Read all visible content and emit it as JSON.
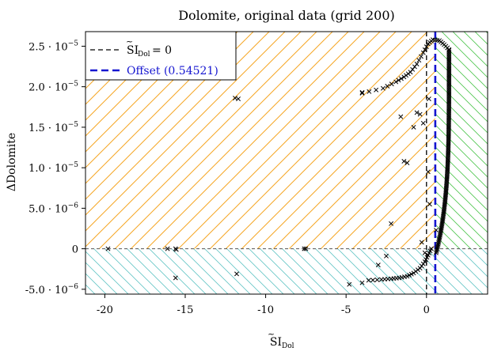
{
  "chart_data": {
    "type": "scatter",
    "title": "Dolomite, original data (grid 200)",
    "xlabel": "SI",
    "xlabel_sub": "Dol",
    "ylabel": "ΔDolomite",
    "xlim": [
      -21.2,
      3.8
    ],
    "ylim": [
      -5.6e-06,
      2.68e-05
    ],
    "x_ticks": [
      {
        "value": -20,
        "label": "-20"
      },
      {
        "value": -15,
        "label": "-15"
      },
      {
        "value": -10,
        "label": "-10"
      },
      {
        "value": -5,
        "label": "-5"
      },
      {
        "value": 0,
        "label": "0"
      }
    ],
    "y_ticks": [
      {
        "value": -5e-06,
        "mant": "-5.0 · 10",
        "exp": "−6"
      },
      {
        "value": 0,
        "mant": "0",
        "exp": ""
      },
      {
        "value": 5e-06,
        "mant": "5.0 · 10",
        "exp": "−6"
      },
      {
        "value": 1e-05,
        "mant": "1.0 · 10",
        "exp": "−5"
      },
      {
        "value": 1.5e-05,
        "mant": "1.5 · 10",
        "exp": "−5"
      },
      {
        "value": 2e-05,
        "mant": "2.0 · 10",
        "exp": "−5"
      },
      {
        "value": 2.5e-05,
        "mant": "2.5 · 10",
        "exp": "−5"
      }
    ],
    "reference_lines": {
      "zero_vline": 0,
      "offset_vline": 0.54521,
      "zero_hline": 0
    },
    "shading": {
      "orange_region": "x < offset and y > 0",
      "green_region": "x > offset and y > 0",
      "cyan_region": "y < 0"
    },
    "colors": {
      "orange": "#f5a623",
      "green": "#4cc44c",
      "cyan": "#63c4c4",
      "offset_line": "#1515d0",
      "points": "#000000"
    },
    "legend": {
      "position": "top-left",
      "entries": [
        {
          "label_main": "SI",
          "label_sub": "Dol",
          "label_rest": " = 0",
          "color": "#000000",
          "style": "dashed"
        },
        {
          "label_main": "Offset (0.54521)",
          "label_sub": "",
          "label_rest": "",
          "color": "#1515d0",
          "style": "dashed"
        }
      ]
    },
    "scattered_points": [
      {
        "x": -19.8,
        "y": 0
      },
      {
        "x": -16.1,
        "y": 0
      },
      {
        "x": -15.6,
        "y": 0
      },
      {
        "x": -15.55,
        "y": -1e-07
      },
      {
        "x": -15.6,
        "y": -3.6e-06
      },
      {
        "x": -11.9,
        "y": 1.86e-05
      },
      {
        "x": -11.7,
        "y": 1.85e-05
      },
      {
        "x": -11.8,
        "y": -3.1e-06
      },
      {
        "x": -7.6,
        "y": 0
      },
      {
        "x": -7.5,
        "y": 0
      },
      {
        "x": -4.8,
        "y": -4.4e-06
      },
      {
        "x": -4.0,
        "y": -4.2e-06
      },
      {
        "x": -4.0,
        "y": 1.93e-05
      },
      {
        "x": -3.0,
        "y": -2e-06
      },
      {
        "x": -2.5,
        "y": -9e-07
      },
      {
        "x": -2.2,
        "y": 3.1e-06
      },
      {
        "x": -1.4,
        "y": 1.08e-05
      },
      {
        "x": -1.2,
        "y": 1.06e-05
      },
      {
        "x": -1.6,
        "y": 1.63e-05
      },
      {
        "x": -0.6,
        "y": 1.68e-05
      },
      {
        "x": -0.4,
        "y": 1.66e-05
      },
      {
        "x": -0.3,
        "y": 8e-07
      },
      {
        "x": -0.8,
        "y": 1.5e-05
      },
      {
        "x": -0.2,
        "y": 1.55e-05
      },
      {
        "x": -0.1,
        "y": -5e-07
      },
      {
        "x": 0.1,
        "y": 9.5e-06
      },
      {
        "x": 0.15,
        "y": 1.85e-05
      },
      {
        "x": 0.2,
        "y": 5.5e-06
      },
      {
        "x": 0.6,
        "y": 2.3e-06
      }
    ],
    "arc_lower": [
      {
        "x": -3.6,
        "y": -3.9e-06
      },
      {
        "x": -2.8,
        "y": -3.8e-06
      },
      {
        "x": -2.2,
        "y": -3.7e-06
      },
      {
        "x": -1.7,
        "y": -3.6e-06
      },
      {
        "x": -1.2,
        "y": -3.4e-06
      },
      {
        "x": -0.8,
        "y": -3e-06
      },
      {
        "x": -0.4,
        "y": -2.4e-06
      },
      {
        "x": -0.1,
        "y": -1.6e-06
      },
      {
        "x": 0.1,
        "y": -8e-07
      },
      {
        "x": 0.3,
        "y": 0
      }
    ],
    "arc_upper": [
      {
        "x": -4.0,
        "y": 1.92e-05
      },
      {
        "x": -2.7,
        "y": 1.98e-05
      },
      {
        "x": -1.9,
        "y": 2.06e-05
      },
      {
        "x": -1.4,
        "y": 2.12e-05
      },
      {
        "x": -1.0,
        "y": 2.18e-05
      },
      {
        "x": -0.6,
        "y": 2.28e-05
      },
      {
        "x": -0.2,
        "y": 2.42e-05
      },
      {
        "x": 0.1,
        "y": 2.53e-05
      },
      {
        "x": 0.4,
        "y": 2.58e-05
      },
      {
        "x": 0.8,
        "y": 2.57e-05
      },
      {
        "x": 1.1,
        "y": 2.52e-05
      },
      {
        "x": 1.4,
        "y": 2.46e-05
      }
    ]
  }
}
